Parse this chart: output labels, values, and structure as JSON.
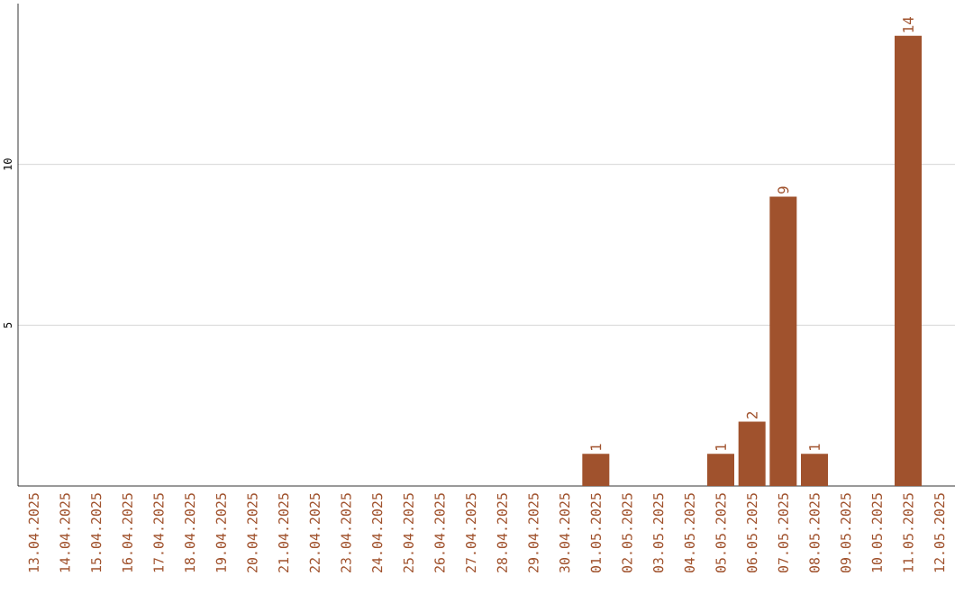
{
  "chart_data": {
    "type": "bar",
    "categories": [
      "13.04.2025",
      "14.04.2025",
      "15.04.2025",
      "16.04.2025",
      "17.04.2025",
      "18.04.2025",
      "19.04.2025",
      "20.04.2025",
      "21.04.2025",
      "22.04.2025",
      "23.04.2025",
      "24.04.2025",
      "25.04.2025",
      "26.04.2025",
      "27.04.2025",
      "28.04.2025",
      "29.04.2025",
      "30.04.2025",
      "01.05.2025",
      "02.05.2025",
      "03.05.2025",
      "04.05.2025",
      "05.05.2025",
      "06.05.2025",
      "07.05.2025",
      "08.05.2025",
      "09.05.2025",
      "10.05.2025",
      "11.05.2025",
      "12.05.2025"
    ],
    "values": [
      0,
      0,
      0,
      0,
      0,
      0,
      0,
      0,
      0,
      0,
      0,
      0,
      0,
      0,
      0,
      0,
      0,
      0,
      1,
      0,
      0,
      0,
      1,
      2,
      9,
      1,
      0,
      0,
      14,
      0
    ],
    "value_labels": [
      null,
      null,
      null,
      null,
      null,
      null,
      null,
      null,
      null,
      null,
      null,
      null,
      null,
      null,
      null,
      null,
      null,
      null,
      "1",
      null,
      null,
      null,
      "1",
      "2",
      "9",
      "1",
      null,
      null,
      "14",
      null
    ],
    "color": "#a0522d",
    "ylim": [
      0,
      15
    ],
    "yticks": [
      5,
      10
    ],
    "grid": "y"
  }
}
